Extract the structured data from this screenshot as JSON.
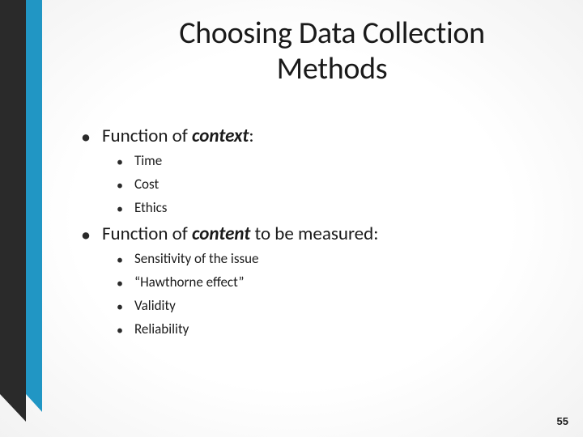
{
  "slide": {
    "title": "Choosing Data Collection Methods",
    "page_number": "55",
    "colors": {
      "accent": "#2196c4",
      "dark_bar": "#2a2a2a",
      "text": "#1a1a1a",
      "bg_center": "#ffffff",
      "bg_edge": "#d8d8d8"
    },
    "font": {
      "title_size_pt": 38,
      "L1_size_pt": 23,
      "L2_size_pt": 17
    },
    "bullets": [
      {
        "text_prefix": "Function of ",
        "text_emph": "context",
        "text_suffix": ":",
        "children": [
          {
            "text": "Time"
          },
          {
            "text": "Cost"
          },
          {
            "text": "Ethics"
          }
        ]
      },
      {
        "text_prefix": "Function of ",
        "text_emph": "content",
        "text_suffix": " to be measured:",
        "children": [
          {
            "text": "Sensitivity of the issue"
          },
          {
            "text": "“Hawthorne effect”"
          },
          {
            "text": "Validity"
          },
          {
            "text": "Reliability"
          }
        ]
      }
    ]
  }
}
